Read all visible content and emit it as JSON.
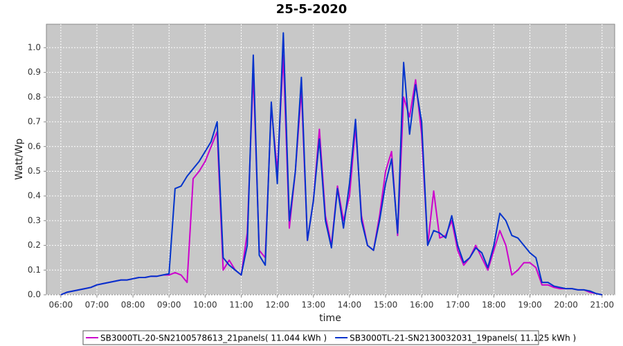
{
  "chart_data": {
    "type": "line",
    "title": "25-5-2020",
    "x_label": "time",
    "y_label": "Watt/Wp",
    "x": [
      "06:00",
      "06:10",
      "06:20",
      "06:30",
      "06:40",
      "06:50",
      "07:00",
      "07:10",
      "07:20",
      "07:30",
      "07:40",
      "07:50",
      "08:00",
      "08:10",
      "08:20",
      "08:30",
      "08:40",
      "08:50",
      "09:00",
      "09:10",
      "09:20",
      "09:30",
      "09:40",
      "09:50",
      "10:00",
      "10:10",
      "10:20",
      "10:30",
      "10:40",
      "10:50",
      "11:00",
      "11:10",
      "11:20",
      "11:30",
      "11:40",
      "11:50",
      "12:00",
      "12:10",
      "12:20",
      "12:30",
      "12:40",
      "12:50",
      "13:00",
      "13:10",
      "13:20",
      "13:30",
      "13:40",
      "13:50",
      "14:00",
      "14:10",
      "14:20",
      "14:30",
      "14:40",
      "14:50",
      "15:00",
      "15:10",
      "15:20",
      "15:30",
      "15:40",
      "15:50",
      "16:00",
      "16:10",
      "16:20",
      "16:30",
      "16:40",
      "16:50",
      "17:00",
      "17:10",
      "17:20",
      "17:30",
      "17:40",
      "17:50",
      "18:00",
      "18:10",
      "18:20",
      "18:30",
      "18:40",
      "18:50",
      "19:00",
      "19:10",
      "19:20",
      "19:30",
      "19:40",
      "19:50",
      "20:00",
      "20:10",
      "20:20",
      "20:30",
      "20:40",
      "20:50",
      "21:00"
    ],
    "series": [
      {
        "name": "SB3000TL-20-SN2100578613_21panels( 11.044 kWh )",
        "color": "#cc00cc",
        "values": [
          0,
          0.01,
          0.015,
          0.02,
          0.025,
          0.03,
          0.04,
          0.045,
          0.05,
          0.055,
          0.06,
          0.06,
          0.065,
          0.07,
          0.07,
          0.075,
          0.075,
          0.08,
          0.08,
          0.09,
          0.08,
          0.05,
          0.47,
          0.5,
          0.54,
          0.6,
          0.66,
          0.1,
          0.14,
          0.1,
          0.08,
          0.25,
          0.9,
          0.18,
          0.15,
          0.76,
          0.5,
          0.97,
          0.27,
          0.5,
          0.83,
          0.22,
          0.38,
          0.67,
          0.32,
          0.2,
          0.44,
          0.3,
          0.4,
          0.68,
          0.32,
          0.2,
          0.18,
          0.32,
          0.5,
          0.58,
          0.24,
          0.8,
          0.72,
          0.87,
          0.65,
          0.2,
          0.42,
          0.23,
          0.24,
          0.3,
          0.18,
          0.12,
          0.15,
          0.2,
          0.15,
          0.1,
          0.18,
          0.26,
          0.2,
          0.08,
          0.1,
          0.13,
          0.13,
          0.11,
          0.04,
          0.04,
          0.03,
          0.025,
          0.025,
          0.025,
          0.02,
          0.02,
          0.01,
          0.005,
          0
        ]
      },
      {
        "name": "SB3000TL-21-SN2130032031_19panels( 11.125 kWh )",
        "color": "#0033cc",
        "values": [
          0,
          0.01,
          0.015,
          0.02,
          0.025,
          0.03,
          0.04,
          0.045,
          0.05,
          0.055,
          0.06,
          0.06,
          0.065,
          0.07,
          0.07,
          0.075,
          0.075,
          0.08,
          0.085,
          0.43,
          0.44,
          0.48,
          0.51,
          0.54,
          0.58,
          0.62,
          0.7,
          0.15,
          0.12,
          0.1,
          0.08,
          0.2,
          0.97,
          0.16,
          0.12,
          0.78,
          0.45,
          1.06,
          0.3,
          0.5,
          0.88,
          0.22,
          0.38,
          0.63,
          0.3,
          0.19,
          0.43,
          0.27,
          0.45,
          0.71,
          0.3,
          0.2,
          0.18,
          0.3,
          0.45,
          0.55,
          0.25,
          0.94,
          0.65,
          0.85,
          0.7,
          0.2,
          0.26,
          0.25,
          0.23,
          0.32,
          0.2,
          0.13,
          0.15,
          0.19,
          0.17,
          0.11,
          0.2,
          0.33,
          0.3,
          0.24,
          0.23,
          0.2,
          0.17,
          0.15,
          0.05,
          0.05,
          0.035,
          0.03,
          0.025,
          0.025,
          0.02,
          0.02,
          0.015,
          0.005,
          0
        ]
      }
    ],
    "xlim": [
      "05:36",
      "21:21"
    ],
    "xticks": [
      "06:00",
      "07:00",
      "08:00",
      "09:00",
      "10:00",
      "11:00",
      "12:00",
      "13:00",
      "14:00",
      "15:00",
      "16:00",
      "17:00",
      "18:00",
      "19:00",
      "20:00",
      "21:00"
    ],
    "ylim": [
      0,
      1.095
    ],
    "yticks": [
      {
        "value": 0,
        "label": "0.0"
      },
      0.1,
      0.2,
      0.3,
      0.4,
      0.5,
      0.6,
      0.7,
      0.8,
      0.9,
      {
        "value": 1,
        "label": "1.0"
      }
    ],
    "grid": true,
    "legend": "bottom"
  }
}
